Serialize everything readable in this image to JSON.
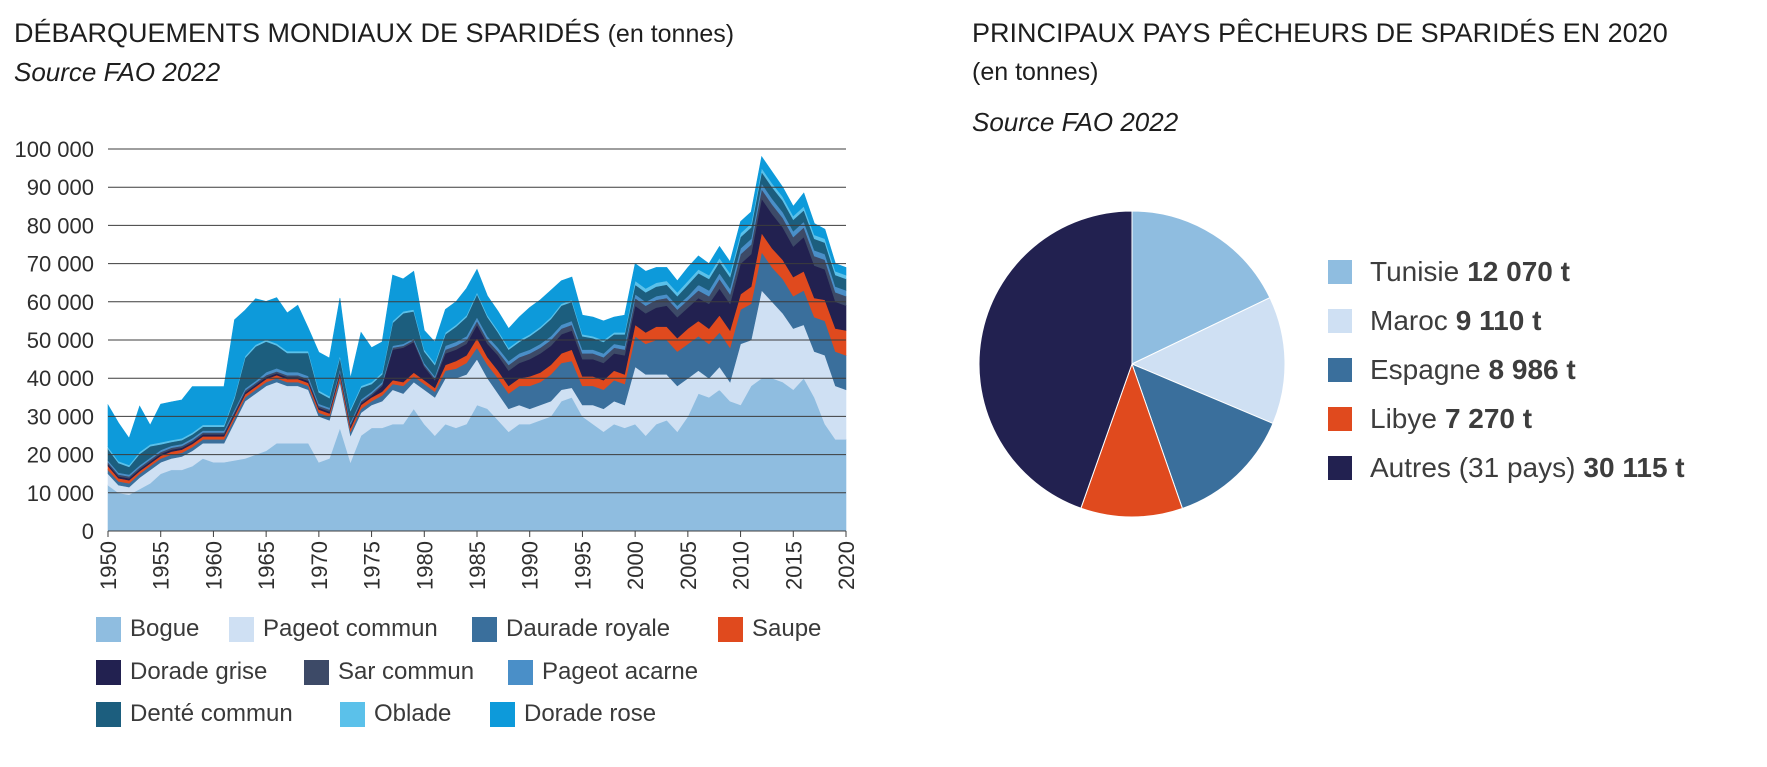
{
  "left": {
    "title": "DÉBARQUEMENTS MONDIAUX DE SPARIDÉS",
    "title_unit": "(en tonnes)",
    "source": "Source FAO 2022"
  },
  "right": {
    "title": "PRINCIPAUX PAYS PÊCHEURS DE SPARIDÉS EN 2020",
    "title_unit": "(en tonnes)",
    "source": "Source FAO 2022"
  },
  "chart_data": [
    {
      "type": "area",
      "stacked": true,
      "x": [
        1950,
        1951,
        1952,
        1953,
        1954,
        1955,
        1956,
        1957,
        1958,
        1959,
        1960,
        1961,
        1962,
        1963,
        1964,
        1965,
        1966,
        1967,
        1968,
        1969,
        1970,
        1971,
        1972,
        1973,
        1974,
        1975,
        1976,
        1977,
        1978,
        1979,
        1980,
        1981,
        1982,
        1983,
        1984,
        1985,
        1986,
        1987,
        1988,
        1989,
        1990,
        1991,
        1992,
        1993,
        1994,
        1995,
        1996,
        1997,
        1998,
        1999,
        2000,
        2001,
        2002,
        2003,
        2004,
        2005,
        2006,
        2007,
        2008,
        2009,
        2010,
        2011,
        2012,
        2013,
        2014,
        2015,
        2016,
        2017,
        2018,
        2019,
        2020
      ],
      "ylim": [
        0,
        100000
      ],
      "yticks": [
        "0",
        "10 000",
        "20 000",
        "30 000",
        "40 000",
        "50 000",
        "60 000",
        "70 000",
        "80 000",
        "90 000",
        "100 000"
      ],
      "xticks": [
        "1950",
        "1955",
        "1960",
        "1965",
        "1970",
        "1975",
        "1980",
        "1985",
        "1990",
        "1995",
        "2000",
        "2005",
        "2010",
        "2015",
        "2020"
      ],
      "grid": true,
      "series": [
        {
          "name": "Bogue",
          "color": "#8fbde0",
          "values": [
            12000,
            10000,
            9500,
            11000,
            12500,
            15000,
            16000,
            16000,
            17000,
            19000,
            18000,
            18000,
            18500,
            19000,
            20000,
            21000,
            23000,
            23000,
            23000,
            23000,
            18000,
            19000,
            27000,
            18000,
            25000,
            27000,
            27000,
            28000,
            28000,
            32000,
            28000,
            25000,
            28000,
            27000,
            28000,
            33000,
            32000,
            29000,
            26000,
            28000,
            28000,
            29000,
            30000,
            34000,
            35000,
            30000,
            28000,
            26000,
            28000,
            27000,
            28000,
            25000,
            28000,
            29000,
            26000,
            30000,
            36000,
            35000,
            37000,
            34000,
            33000,
            38000,
            40000,
            40000,
            39000,
            37000,
            40000,
            35000,
            28000,
            24000,
            24000
          ]
        },
        {
          "name": "Pageot commun",
          "color": "#cfe0f3",
          "values": [
            3000,
            2000,
            2000,
            3000,
            3500,
            3000,
            3000,
            3500,
            4000,
            4000,
            5000,
            5000,
            10000,
            15000,
            16000,
            17000,
            16000,
            15000,
            15000,
            14000,
            12000,
            10000,
            12000,
            7000,
            6000,
            6000,
            7000,
            9000,
            8000,
            7000,
            9000,
            10000,
            12000,
            13000,
            13000,
            12000,
            8000,
            7000,
            6000,
            5000,
            4000,
            4000,
            4000,
            3000,
            2500,
            3000,
            5000,
            6000,
            6000,
            6000,
            15000,
            16000,
            13000,
            12000,
            12000,
            10000,
            6000,
            5000,
            6000,
            5000,
            16000,
            12000,
            23000,
            20000,
            18000,
            16000,
            14000,
            12000,
            18000,
            14000,
            13000
          ]
        },
        {
          "name": "Daurade royale",
          "color": "#3a6f9c",
          "values": [
            1000,
            1000,
            1000,
            1000,
            1000,
            1000,
            1000,
            1000,
            1000,
            1000,
            1000,
            1000,
            1000,
            1000,
            1000,
            1000,
            1000,
            1000,
            1000,
            1000,
            1000,
            1000,
            1000,
            1000,
            1000,
            1000,
            1500,
            1500,
            2000,
            1500,
            1500,
            1500,
            2000,
            2500,
            3000,
            3000,
            3500,
            4000,
            4000,
            5000,
            6000,
            6000,
            7000,
            7000,
            7000,
            5000,
            5000,
            5000,
            5500,
            5500,
            8000,
            8000,
            9000,
            9000,
            9000,
            9000,
            9000,
            9000,
            9000,
            9000,
            9000,
            9500,
            10000,
            9000,
            9000,
            8500,
            9000,
            9000,
            9000,
            9000,
            9000
          ]
        },
        {
          "name": "Saupe",
          "color": "#e04a1e",
          "values": [
            1000,
            800,
            800,
            700,
            700,
            700,
            800,
            800,
            800,
            800,
            800,
            800,
            800,
            800,
            800,
            800,
            800,
            800,
            800,
            800,
            800,
            800,
            1000,
            1000,
            1000,
            1000,
            1000,
            1000,
            1000,
            1000,
            1000,
            1000,
            1500,
            2000,
            2000,
            2500,
            2000,
            2000,
            2000,
            2000,
            2500,
            2500,
            2500,
            2500,
            3000,
            2500,
            2500,
            2500,
            2500,
            2500,
            3000,
            3000,
            3500,
            3500,
            3500,
            4000,
            4000,
            4000,
            4500,
            4500,
            4000,
            4500,
            5000,
            5000,
            5000,
            5000,
            5000,
            5000,
            5500,
            6000,
            6500
          ]
        },
        {
          "name": "Dorade grise",
          "color": "#222150",
          "values": [
            500,
            500,
            500,
            500,
            500,
            500,
            500,
            500,
            500,
            500,
            500,
            500,
            500,
            500,
            500,
            500,
            500,
            500,
            500,
            500,
            500,
            500,
            500,
            500,
            500,
            500,
            1500,
            8000,
            9000,
            8000,
            3500,
            2000,
            3000,
            3000,
            3000,
            3500,
            3500,
            4000,
            4000,
            4000,
            4500,
            5000,
            5000,
            5000,
            5000,
            4500,
            4500,
            4500,
            4500,
            5000,
            5000,
            5000,
            5000,
            5500,
            5500,
            5500,
            6000,
            6500,
            7000,
            7000,
            8000,
            8500,
            9000,
            9000,
            8500,
            8000,
            9000,
            8500,
            8000,
            7000,
            6500
          ]
        },
        {
          "name": "Sar commun",
          "color": "#3d4a67",
          "values": [
            500,
            500,
            500,
            500,
            500,
            500,
            500,
            500,
            500,
            500,
            500,
            500,
            500,
            500,
            500,
            500,
            500,
            500,
            500,
            500,
            500,
            500,
            500,
            500,
            500,
            500,
            500,
            500,
            500,
            500,
            500,
            500,
            1000,
            1000,
            1000,
            1000,
            1000,
            1000,
            1500,
            1500,
            1500,
            1500,
            1500,
            1500,
            1500,
            1500,
            1500,
            1500,
            1500,
            1500,
            2000,
            2000,
            2000,
            2000,
            2000,
            2000,
            2000,
            2000,
            2500,
            2500,
            2500,
            2500,
            2500,
            2500,
            2500,
            2500,
            2500,
            2500,
            2500,
            2500,
            2500
          ]
        },
        {
          "name": "Pageot acarne",
          "color": "#4a8fc8",
          "values": [
            500,
            500,
            500,
            500,
            500,
            500,
            500,
            500,
            500,
            500,
            500,
            500,
            500,
            500,
            500,
            800,
            800,
            800,
            800,
            800,
            500,
            500,
            500,
            500,
            500,
            500,
            500,
            500,
            500,
            500,
            500,
            500,
            1000,
            1000,
            1000,
            1000,
            1000,
            1000,
            1000,
            1000,
            1000,
            1000,
            1000,
            1000,
            1000,
            1000,
            1000,
            1000,
            1000,
            1000,
            1000,
            1000,
            1000,
            1000,
            1000,
            1000,
            1500,
            1500,
            1500,
            1500,
            1500,
            1500,
            1500,
            1500,
            1500,
            1500,
            1500,
            1500,
            1500,
            1500,
            1500
          ]
        },
        {
          "name": "Denté commun",
          "color": "#1c5e7e",
          "values": [
            3000,
            2500,
            2000,
            3000,
            3000,
            1500,
            1000,
            1000,
            1000,
            1000,
            1000,
            1000,
            3000,
            8000,
            9000,
            8000,
            6000,
            5000,
            5000,
            6000,
            3000,
            2500,
            3000,
            3000,
            3000,
            2000,
            2000,
            6000,
            8000,
            7000,
            3000,
            3000,
            3000,
            4000,
            5000,
            6000,
            5000,
            4000,
            3000,
            3000,
            3500,
            4000,
            4500,
            5000,
            5000,
            3500,
            3000,
            3000,
            2500,
            3000,
            2500,
            2500,
            2500,
            2500,
            2500,
            3000,
            3000,
            3000,
            3000,
            3000,
            3000,
            3000,
            3000,
            3000,
            3000,
            3000,
            3000,
            3000,
            3000,
            3000,
            3000
          ]
        },
        {
          "name": "Oblade",
          "color": "#5bc1ea",
          "values": [
            500,
            500,
            500,
            500,
            500,
            500,
            500,
            500,
            500,
            500,
            500,
            500,
            500,
            500,
            500,
            500,
            500,
            500,
            500,
            500,
            500,
            500,
            500,
            500,
            500,
            500,
            500,
            500,
            500,
            500,
            500,
            500,
            500,
            500,
            500,
            500,
            500,
            500,
            500,
            500,
            500,
            500,
            500,
            500,
            500,
            500,
            500,
            500,
            500,
            500,
            1000,
            1000,
            1000,
            1000,
            1000,
            1000,
            1000,
            1000,
            1000,
            1000,
            1000,
            1000,
            1000,
            1000,
            1000,
            1000,
            1000,
            1000,
            1000,
            1000,
            1000
          ]
        },
        {
          "name": "Dorade rose",
          "color": "#0d9ada",
          "values": [
            11000,
            10000,
            7000,
            12000,
            5000,
            10000,
            10000,
            10000,
            12000,
            10000,
            10000,
            10000,
            20000,
            12000,
            12000,
            10000,
            12000,
            10000,
            12000,
            6000,
            10000,
            10000,
            15000,
            8000,
            14000,
            9000,
            8000,
            12000,
            8500,
            10000,
            5000,
            5500,
            6000,
            6000,
            7000,
            6000,
            5000,
            5000,
            5000,
            6000,
            7000,
            7000,
            7000,
            6000,
            6000,
            5000,
            5000,
            5000,
            4000,
            4500,
            4500,
            4500,
            4000,
            3500,
            3000,
            3500,
            3500,
            3000,
            3000,
            3000,
            3000,
            3000,
            3000,
            3000,
            2500,
            2500,
            3500,
            3000,
            2500,
            2000,
            2000
          ]
        }
      ]
    },
    {
      "type": "pie",
      "slices": [
        {
          "label": "Tunisie",
          "value_label": "12 070 t",
          "value": 12070,
          "color": "#8fbde0"
        },
        {
          "label": "Maroc",
          "value_label": "9 110 t",
          "value": 9110,
          "color": "#cfe0f3"
        },
        {
          "label": "Espagne",
          "value_label": "8 986 t",
          "value": 8986,
          "color": "#3a6f9c"
        },
        {
          "label": "Libye",
          "value_label": "7 270 t",
          "value": 7270,
          "color": "#e04a1e"
        },
        {
          "label": "Autres (31 pays)",
          "value_label": "30 115 t",
          "value": 30115,
          "color": "#222150"
        }
      ]
    }
  ]
}
